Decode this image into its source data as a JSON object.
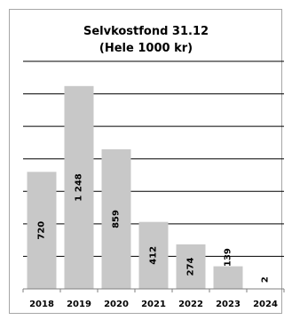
{
  "chart_data": {
    "type": "bar",
    "title": "Selvkostfond 31.12",
    "subtitle": "(Hele 1000 kr)",
    "categories": [
      "2018",
      "2019",
      "2020",
      "2021",
      "2022",
      "2023",
      "2024"
    ],
    "values": [
      720,
      1248,
      859,
      412,
      274,
      139,
      2
    ],
    "value_labels": [
      "720",
      "1 248",
      "859",
      "412",
      "274",
      "139",
      "2"
    ],
    "xlabel": "",
    "ylabel": "",
    "ylim": [
      0,
      1400
    ],
    "grid": true,
    "legend": "none",
    "colors": {
      "bar": "#c8c8c8",
      "grid": "#000000",
      "axis": "#7f7f7f",
      "frame": "#a6a6a6"
    }
  }
}
